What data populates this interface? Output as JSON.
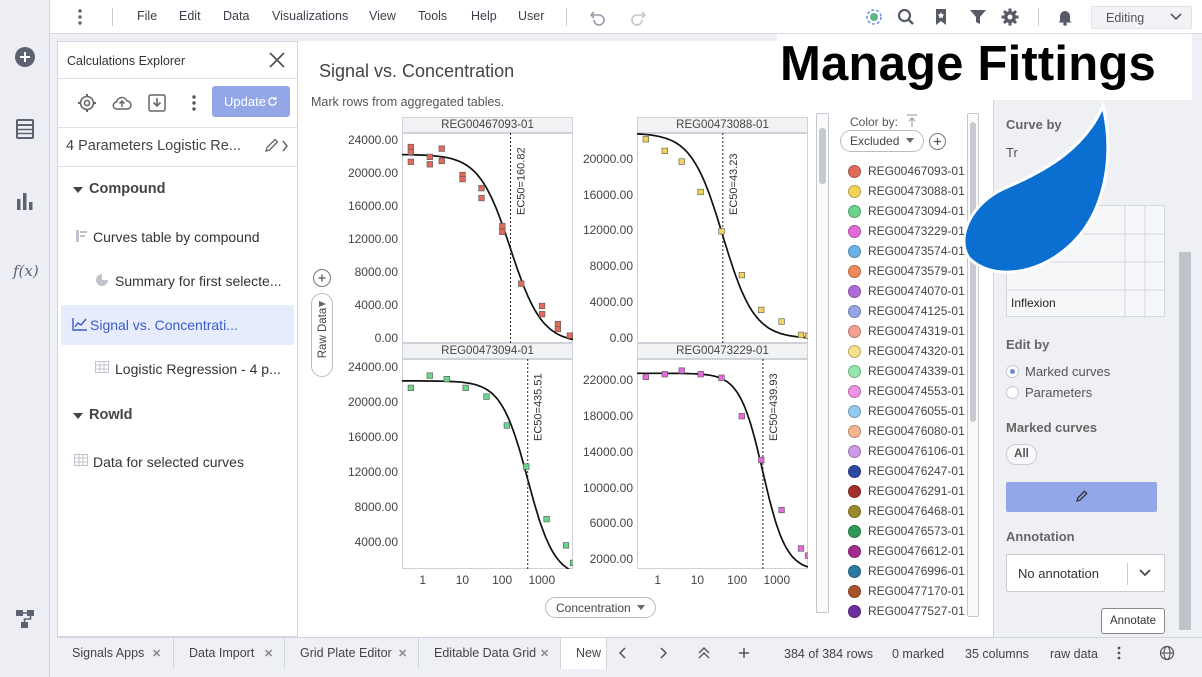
{
  "menubar": {
    "items": [
      "File",
      "Edit",
      "Data",
      "Visualizations",
      "View",
      "Tools",
      "Help",
      "User"
    ],
    "mode": "Editing",
    "icons": [
      "menu-dots-icon",
      "undo-icon",
      "redo-icon",
      "ai-sparkle-icon",
      "search-icon",
      "bookmark-icon",
      "filter-icon",
      "settings-gear-icon",
      "notification-bell-icon"
    ]
  },
  "rail": {
    "icons": [
      "add-icon",
      "data-table-icon",
      "visualization-icon",
      "fx-icon",
      "data-flow-icon"
    ],
    "fx_label": "f(x)"
  },
  "explorer": {
    "title": "Calculations Explorer",
    "update_label": "Update",
    "calc_name": "4 Parameters Logistic Re...",
    "tree": [
      {
        "label": "Compound",
        "type": "header"
      },
      {
        "label": "Curves table by compound",
        "type": "table"
      },
      {
        "label": "Summary for first selecte...",
        "type": "pie"
      },
      {
        "label": "Signal vs. Concentrati...",
        "type": "chart",
        "selected": true
      },
      {
        "label": "Logistic Regression - 4 p...",
        "type": "grid"
      },
      {
        "label": "RowId",
        "type": "header"
      },
      {
        "label": "Data for selected curves",
        "type": "grid"
      }
    ]
  },
  "viz": {
    "title": "Signal vs. Concentration",
    "subtitle": "Mark rows from aggregated tables.",
    "raw_data_label": "Raw Data",
    "x_axis_label": "Concentration",
    "color_by_label": "Color by:",
    "color_by_value": "Excluded"
  },
  "chart_data": [
    {
      "type": "scatter",
      "title": "REG00467093-01",
      "annotation": "EC50=160.82",
      "ec50": 160.82,
      "x_scale": "log",
      "xlim": [
        0.3,
        6000
      ],
      "ylim": [
        -500,
        25000
      ],
      "x_ticks": [
        "1",
        "10",
        "100",
        "1000"
      ],
      "y_ticks": [
        "0.00",
        "4000.00",
        "8000.00",
        "12000.00",
        "16000.00",
        "20000.00",
        "24000.00"
      ],
      "points": [
        [
          0.5,
          23300
        ],
        [
          0.5,
          22700
        ],
        [
          0.5,
          21500
        ],
        [
          1.5,
          22100
        ],
        [
          1.5,
          21200
        ],
        [
          3,
          23100
        ],
        [
          3,
          21600
        ],
        [
          10,
          19900
        ],
        [
          10,
          19400
        ],
        [
          30,
          18300
        ],
        [
          30,
          17100
        ],
        [
          100,
          13700
        ],
        [
          100,
          13000
        ],
        [
          300,
          6700
        ],
        [
          1000,
          4000
        ],
        [
          1000,
          3000
        ],
        [
          2500,
          1800
        ],
        [
          2500,
          1200
        ],
        [
          5000,
          400
        ]
      ],
      "color": "#e06b5a",
      "curve": {
        "top": 22400,
        "bottom": -500,
        "hill": 1.1
      }
    },
    {
      "type": "scatter",
      "title": "REG00473088-01",
      "annotation": "EC50=43.23",
      "ec50": 43.23,
      "x_scale": "log",
      "xlim": [
        0.3,
        6000
      ],
      "ylim": [
        -500,
        23000
      ],
      "x_ticks": [],
      "y_ticks": [
        "0.00",
        "4000.00",
        "8000.00",
        "12000.00",
        "16000.00",
        "20000.00"
      ],
      "points": [
        [
          0.5,
          22300
        ],
        [
          1.5,
          21000
        ],
        [
          4,
          19800
        ],
        [
          12,
          16400
        ],
        [
          40,
          12000
        ],
        [
          130,
          7100
        ],
        [
          400,
          3200
        ],
        [
          1300,
          1900
        ],
        [
          4000,
          400
        ],
        [
          6000,
          300
        ]
      ],
      "color": "#f3d45a",
      "curve": {
        "top": 23000,
        "bottom": 0,
        "hill": 1.1
      }
    },
    {
      "type": "scatter",
      "title": "REG00473094-01",
      "annotation": "EC50=435.51",
      "ec50": 435.51,
      "x_scale": "log",
      "xlim": [
        0.3,
        6000
      ],
      "ylim": [
        1000,
        25000
      ],
      "x_ticks": [
        "1",
        "10",
        "100",
        "1000"
      ],
      "y_ticks": [
        "4000.00",
        "8000.00",
        "12000.00",
        "16000.00",
        "20000.00",
        "24000.00"
      ],
      "points": [
        [
          0.5,
          21700
        ],
        [
          1.5,
          23100
        ],
        [
          4,
          22700
        ],
        [
          12,
          21700
        ],
        [
          40,
          20700
        ],
        [
          130,
          17400
        ],
        [
          400,
          12700
        ],
        [
          1300,
          6700
        ],
        [
          4000,
          3700
        ],
        [
          6000,
          1700
        ]
      ],
      "color": "#6cd38c",
      "curve": {
        "top": 22500,
        "bottom": 0,
        "hill": 1.3
      }
    },
    {
      "type": "scatter",
      "title": "REG00473229-01",
      "annotation": "EC50=439.93",
      "ec50": 439.93,
      "x_scale": "log",
      "xlim": [
        0.3,
        6000
      ],
      "ylim": [
        1000,
        24500
      ],
      "x_ticks": [
        "1",
        "10",
        "100",
        "1000"
      ],
      "y_ticks": [
        "2000.00",
        "6000.00",
        "10000.00",
        "14000.00",
        "18000.00",
        "22000.00"
      ],
      "points": [
        [
          0.5,
          22500
        ],
        [
          1.5,
          22800
        ],
        [
          4,
          23200
        ],
        [
          12,
          22800
        ],
        [
          40,
          22400
        ],
        [
          130,
          18100
        ],
        [
          400,
          13200
        ],
        [
          1300,
          7600
        ],
        [
          4000,
          3300
        ],
        [
          6000,
          2500
        ]
      ],
      "color": "#e46bd9",
      "curve": {
        "top": 22900,
        "bottom": 800,
        "hill": 1.5
      }
    }
  ],
  "legend": [
    {
      "label": "REG00467093-01",
      "color": "#e06b5a"
    },
    {
      "label": "REG00473088-01",
      "color": "#f3d45a"
    },
    {
      "label": "REG00473094-01",
      "color": "#6cd38c"
    },
    {
      "label": "REG00473229-01",
      "color": "#e46bd9"
    },
    {
      "label": "REG00473574-01",
      "color": "#6bb3e6"
    },
    {
      "label": "REG00473579-01",
      "color": "#ef8a5a"
    },
    {
      "label": "REG00474070-01",
      "color": "#b06ad8"
    },
    {
      "label": "REG00474125-01",
      "color": "#96a6e4"
    },
    {
      "label": "REG00474319-01",
      "color": "#f2a093"
    },
    {
      "label": "REG00474320-01",
      "color": "#f7e08c"
    },
    {
      "label": "REG00474339-01",
      "color": "#93e6ad"
    },
    {
      "label": "REG00474553-01",
      "color": "#ef93e6"
    },
    {
      "label": "REG00476055-01",
      "color": "#93cbef"
    },
    {
      "label": "REG00476080-01",
      "color": "#f5b58e"
    },
    {
      "label": "REG00476106-01",
      "color": "#cc9ae6"
    },
    {
      "label": "REG00476247-01",
      "color": "#2b49a0"
    },
    {
      "label": "REG00476291-01",
      "color": "#a4302a"
    },
    {
      "label": "REG00476468-01",
      "color": "#9b8a2a"
    },
    {
      "label": "REG00476573-01",
      "color": "#2e9a55"
    },
    {
      "label": "REG00476612-01",
      "color": "#a32c8e"
    },
    {
      "label": "REG00476996-01",
      "color": "#2a7aa4"
    },
    {
      "label": "REG00477170-01",
      "color": "#a6542a"
    },
    {
      "label": "REG00477527-01",
      "color": "#6e2ea0"
    }
  ],
  "props": {
    "curve_by_label": "Curve by",
    "curve_by_partial": "Tr",
    "inflexion_label": "Inflexion",
    "edit_by_label": "Edit by",
    "edit_by_options": [
      "Marked curves",
      "Parameters"
    ],
    "edit_by_selected": 0,
    "marked_curves_label": "Marked curves",
    "all_label": "All",
    "annotation_label": "Annotation",
    "annotation_value": "No annotation",
    "annotate_label": "Annotate"
  },
  "banner": {
    "text": "Manage Fittings",
    "drop_color": "#0a6fd1"
  },
  "bottombar": {
    "tabs": [
      "Signals Apps",
      "Data Import",
      "Grid Plate Editor",
      "Editable Data Grid",
      "New"
    ],
    "rows": "384 of 384 rows",
    "marked": "0 marked",
    "columns": "35 columns",
    "table": "raw data"
  }
}
